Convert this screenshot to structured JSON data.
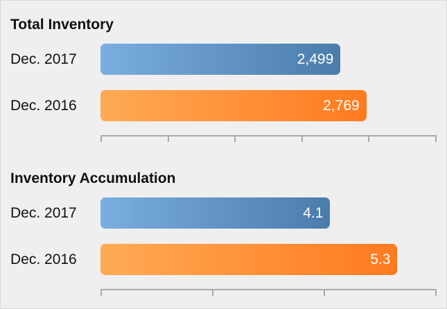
{
  "chart_data": [
    {
      "type": "bar",
      "orientation": "horizontal",
      "title": "Total Inventory",
      "categories": [
        "Dec. 2017",
        "Dec. 2016"
      ],
      "values": [
        2499,
        2769
      ],
      "value_labels": [
        "2,499",
        "2,769"
      ],
      "xlim": [
        0,
        3500
      ],
      "tick_count": 6,
      "grid": false,
      "colors": [
        "#5a8cc0",
        "#ff8c2e"
      ]
    },
    {
      "type": "bar",
      "orientation": "horizontal",
      "title": "Inventory Accumulation",
      "categories": [
        "Dec. 2017",
        "Dec. 2016"
      ],
      "values": [
        4.1,
        5.3
      ],
      "value_labels": [
        "4.1",
        "5.3"
      ],
      "xlim": [
        0,
        6
      ],
      "tick_count": 4,
      "grid": false,
      "colors": [
        "#5a8cc0",
        "#ff8c2e"
      ]
    }
  ]
}
